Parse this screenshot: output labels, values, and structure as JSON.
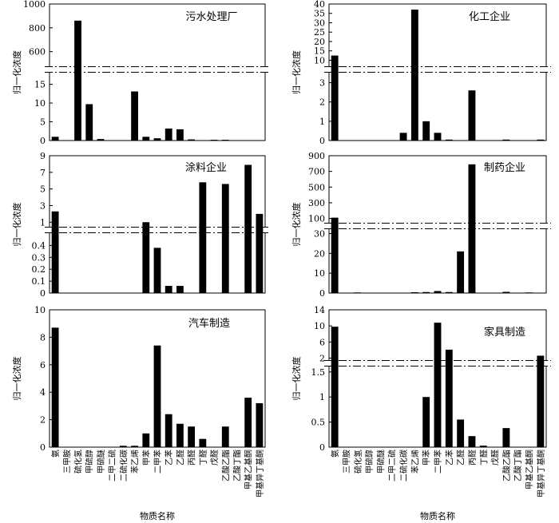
{
  "chart_data": [
    {
      "type": "bar",
      "title": "污水处理厂",
      "ylabel": "归一化浓度",
      "xlabel": "物质名称",
      "categories": [
        "氨",
        "三甲胺",
        "硫化氢",
        "甲硫醇",
        "甲硫醚",
        "二甲二硫",
        "二硫化碳",
        "苯乙烯",
        "甲苯",
        "二甲苯",
        "乙苯",
        "乙醛",
        "丙醛",
        "丁醛",
        "戊醛",
        "乙酸乙酯",
        "乙酸丁酯",
        "甲基乙基酮",
        "甲基异丁基酮"
      ],
      "values": [
        1.0,
        0,
        860,
        9.7,
        0.4,
        0,
        0,
        13.1,
        1.0,
        0.6,
        3.2,
        3.0,
        0.3,
        0,
        0.2,
        0.2,
        0,
        0,
        0
      ],
      "axis_break": true,
      "lower_yticks": [
        0,
        5,
        10,
        15
      ],
      "lower_ylim": [
        0,
        18
      ],
      "upper_yticks": [
        600,
        800,
        1000
      ],
      "upper_ylim": [
        480,
        1000
      ]
    },
    {
      "type": "bar",
      "title": "化工企业",
      "ylabel": "归一化浓度",
      "xlabel": "物质名称",
      "categories": [
        "氨",
        "三甲胺",
        "硫化氢",
        "甲硫醇",
        "甲硫醚",
        "二甲二硫",
        "二硫化碳",
        "苯乙烯",
        "甲苯",
        "二甲苯",
        "乙苯",
        "乙醛",
        "丙醛",
        "丁醛",
        "戊醛",
        "乙酸乙酯",
        "乙酸丁酯",
        "甲基乙基酮",
        "甲基异丁基酮"
      ],
      "values": [
        12.5,
        0,
        0,
        0,
        0,
        0,
        0.4,
        37,
        1.0,
        0.4,
        0.05,
        0,
        2.6,
        0,
        0,
        0.05,
        0,
        0,
        0.05
      ],
      "axis_break": true,
      "lower_yticks": [
        0,
        1,
        2,
        3
      ],
      "lower_ylim": [
        0,
        3.5
      ],
      "upper_yticks": [
        10,
        15,
        20,
        25,
        30,
        35,
        40
      ],
      "upper_ylim": [
        7,
        40
      ]
    },
    {
      "type": "bar",
      "title": "涂料企业",
      "ylabel": "归一化浓度",
      "xlabel": "物质名称",
      "categories": [
        "氨",
        "三甲胺",
        "硫化氢",
        "甲硫醇",
        "甲硫醚",
        "二甲二硫",
        "二硫化碳",
        "苯乙烯",
        "甲苯",
        "二甲苯",
        "乙苯",
        "乙醛",
        "丙醛",
        "丁醛",
        "戊醛",
        "乙酸乙酯",
        "乙酸丁酯",
        "甲基乙基酮",
        "甲基异丁基酮"
      ],
      "values": [
        2.3,
        0,
        0,
        0,
        0,
        0,
        0,
        0,
        1.0,
        0.38,
        0.06,
        0.06,
        0,
        5.8,
        0,
        5.6,
        0,
        7.9,
        2.0
      ],
      "axis_break": true,
      "lower_yticks": [
        0,
        0.1,
        0.2,
        0.3,
        0.4
      ],
      "lower_ylim": [
        0,
        0.5
      ],
      "upper_yticks": [
        1,
        3,
        5,
        7,
        9
      ],
      "upper_ylim": [
        0.5,
        9
      ]
    },
    {
      "type": "bar",
      "title": "制药企业",
      "ylabel": "归一化浓度",
      "xlabel": "物质名称",
      "categories": [
        "氨",
        "三甲胺",
        "硫化氢",
        "甲硫醇",
        "甲硫醚",
        "二甲二硫",
        "二硫化碳",
        "苯乙烯",
        "甲苯",
        "二甲苯",
        "乙苯",
        "乙醛",
        "丙醛",
        "丁醛",
        "戊醛",
        "乙酸乙酯",
        "乙酸丁酯",
        "甲基乙基酮",
        "甲基异丁基酮"
      ],
      "values": [
        110,
        0,
        0.3,
        0,
        0,
        0,
        0,
        0.4,
        0.5,
        1.0,
        0.5,
        21,
        790,
        0,
        0,
        0.6,
        0,
        0.3,
        0
      ],
      "axis_break": true,
      "lower_yticks": [
        0,
        10,
        20,
        30
      ],
      "lower_ylim": [
        0,
        32
      ],
      "upper_yticks": [
        100,
        300,
        500,
        700,
        900
      ],
      "upper_ylim": [
        50,
        900
      ]
    },
    {
      "type": "bar",
      "title": "汽车制造",
      "ylabel": "归一化浓度",
      "xlabel": "物质名称",
      "categories": [
        "氨",
        "三甲胺",
        "硫化氢",
        "甲硫醇",
        "甲硫醚",
        "二甲二硫",
        "二硫化碳",
        "苯乙烯",
        "甲苯",
        "二甲苯",
        "乙苯",
        "乙醛",
        "丙醛",
        "丁醛",
        "戊醛",
        "乙酸乙酯",
        "乙酸丁酯",
        "甲基乙基酮",
        "甲基异丁基酮"
      ],
      "values": [
        8.7,
        0,
        0,
        0,
        0,
        0,
        0.1,
        0.1,
        1.0,
        7.4,
        2.4,
        1.7,
        1.5,
        0.6,
        0,
        1.5,
        0,
        3.6,
        3.2
      ],
      "axis_break": false,
      "yticks": [
        0,
        2,
        4,
        6,
        8,
        10
      ],
      "ylim": [
        0,
        10
      ]
    },
    {
      "type": "bar",
      "title": "家具制造",
      "ylabel": "归一化浓度",
      "xlabel": "物质名称",
      "categories": [
        "氨",
        "三甲胺",
        "硫化氢",
        "甲硫醇",
        "甲硫醚",
        "二甲二硫",
        "二硫化碳",
        "苯乙烯",
        "甲苯",
        "二甲苯",
        "乙苯",
        "乙醛",
        "丙醛",
        "丁醛",
        "戊醛",
        "乙酸乙酯",
        "乙酸丁酯",
        "甲基乙基酮",
        "甲基异丁基酮"
      ],
      "values": [
        9.8,
        0,
        0,
        0,
        0,
        0,
        0,
        0,
        1.0,
        10.8,
        4.1,
        0.55,
        0.22,
        0.03,
        0,
        0.38,
        0,
        0,
        2.6
      ],
      "axis_break": true,
      "lower_yticks": [
        0,
        0.5,
        1.0,
        1.5
      ],
      "lower_ylim": [
        0,
        1.6
      ],
      "upper_yticks": [
        2,
        6,
        10,
        14
      ],
      "upper_ylim": [
        1.6,
        14
      ]
    }
  ]
}
